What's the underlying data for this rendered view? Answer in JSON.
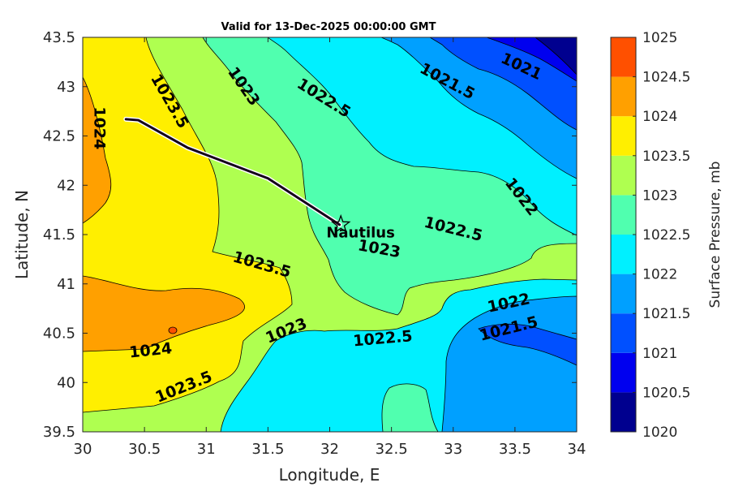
{
  "chart_data": {
    "type": "contour",
    "title": "Valid for 13-Dec-2025 00:00:00 GMT",
    "xlabel": "Longitude, E",
    "ylabel": "Latitude, N",
    "xlim": [
      30,
      34
    ],
    "ylim": [
      39.5,
      43.5
    ],
    "xticks": [
      "30",
      "30.5",
      "31",
      "31.5",
      "32",
      "32.5",
      "33",
      "33.5",
      "34"
    ],
    "yticks": [
      "39.5",
      "40",
      "40.5",
      "41",
      "41.5",
      "42",
      "42.5",
      "43",
      "43.5"
    ],
    "colorbar": {
      "label": "Surface Pressure, mb",
      "levels": [
        1020,
        1020.5,
        1021,
        1021.5,
        1022,
        1022.5,
        1023,
        1023.5,
        1024,
        1024.5,
        1025
      ],
      "tick_labels": [
        "1020",
        "1020.5",
        "1021",
        "1021.5",
        "1022",
        "1022.5",
        "1023",
        "1023.5",
        "1024",
        "1024.5",
        "1025"
      ],
      "colors": [
        "#00008f",
        "#0000ef",
        "#0050ff",
        "#00a0ff",
        "#00f0ff",
        "#50ffaf",
        "#afff50",
        "#ffef00",
        "#ffa000",
        "#ff5000",
        "#ef0000"
      ]
    },
    "contour_labels": [
      {
        "text": "1024",
        "lon": 30.13,
        "lat": 42.58,
        "rot": 90
      },
      {
        "text": "1023.5",
        "lon": 30.7,
        "lat": 42.85,
        "rot": 60
      },
      {
        "text": "1023",
        "lon": 31.3,
        "lat": 43.0,
        "rot": 55
      },
      {
        "text": "1022.5",
        "lon": 31.95,
        "lat": 42.88,
        "rot": 32
      },
      {
        "text": "1021.5",
        "lon": 32.95,
        "lat": 43.05,
        "rot": 28
      },
      {
        "text": "1021",
        "lon": 33.55,
        "lat": 43.2,
        "rot": 25
      },
      {
        "text": "1022",
        "lon": 33.55,
        "lat": 41.88,
        "rot": 52
      },
      {
        "text": "1022.5",
        "lon": 33.0,
        "lat": 41.55,
        "rot": 14
      },
      {
        "text": "1023",
        "lon": 32.4,
        "lat": 41.35,
        "rot": 10
      },
      {
        "text": "1023.5",
        "lon": 31.45,
        "lat": 41.19,
        "rot": 16
      },
      {
        "text": "1023",
        "lon": 31.65,
        "lat": 40.52,
        "rot": -22
      },
      {
        "text": "1022.5",
        "lon": 32.43,
        "lat": 40.44,
        "rot": -5
      },
      {
        "text": "1022",
        "lon": 33.45,
        "lat": 40.8,
        "rot": -12
      },
      {
        "text": "1021.5",
        "lon": 33.45,
        "lat": 40.54,
        "rot": -14
      },
      {
        "text": "1024",
        "lon": 30.55,
        "lat": 40.32,
        "rot": -6
      },
      {
        "text": "1023.5",
        "lon": 30.82,
        "lat": 39.95,
        "rot": -22
      }
    ],
    "track": {
      "name": "Nautilus",
      "points": [
        [
          30.35,
          42.67
        ],
        [
          30.45,
          42.66
        ],
        [
          30.85,
          42.38
        ],
        [
          31.5,
          42.07
        ],
        [
          32.08,
          41.6
        ]
      ],
      "marker": [
        32.09,
        41.6
      ],
      "label_pos": [
        32.25,
        41.47
      ]
    }
  }
}
